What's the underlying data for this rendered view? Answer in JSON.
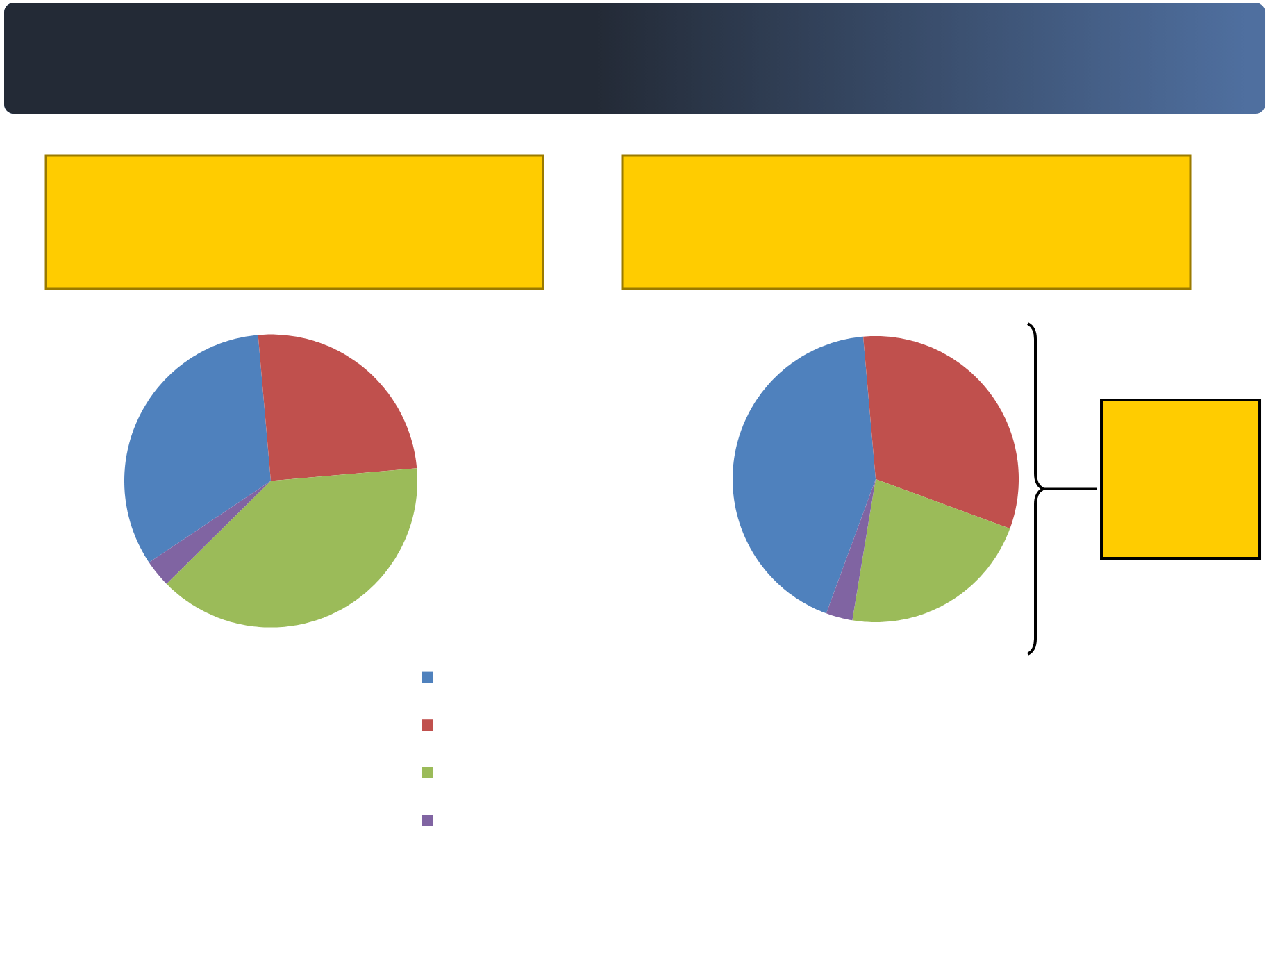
{
  "chart_data": [
    {
      "type": "pie",
      "categories": [
        null,
        null,
        null,
        null
      ],
      "values": [
        33,
        25,
        39,
        3
      ],
      "colors": [
        "#4f81bd",
        "#c0504d",
        "#9bbb59",
        "#8064a2"
      ]
    },
    {
      "type": "pie",
      "categories": [
        null,
        null,
        null,
        null
      ],
      "values": [
        43,
        32,
        22,
        3
      ],
      "colors": [
        "#4f81bd",
        "#c0504d",
        "#9bbb59",
        "#8064a2"
      ]
    }
  ]
}
